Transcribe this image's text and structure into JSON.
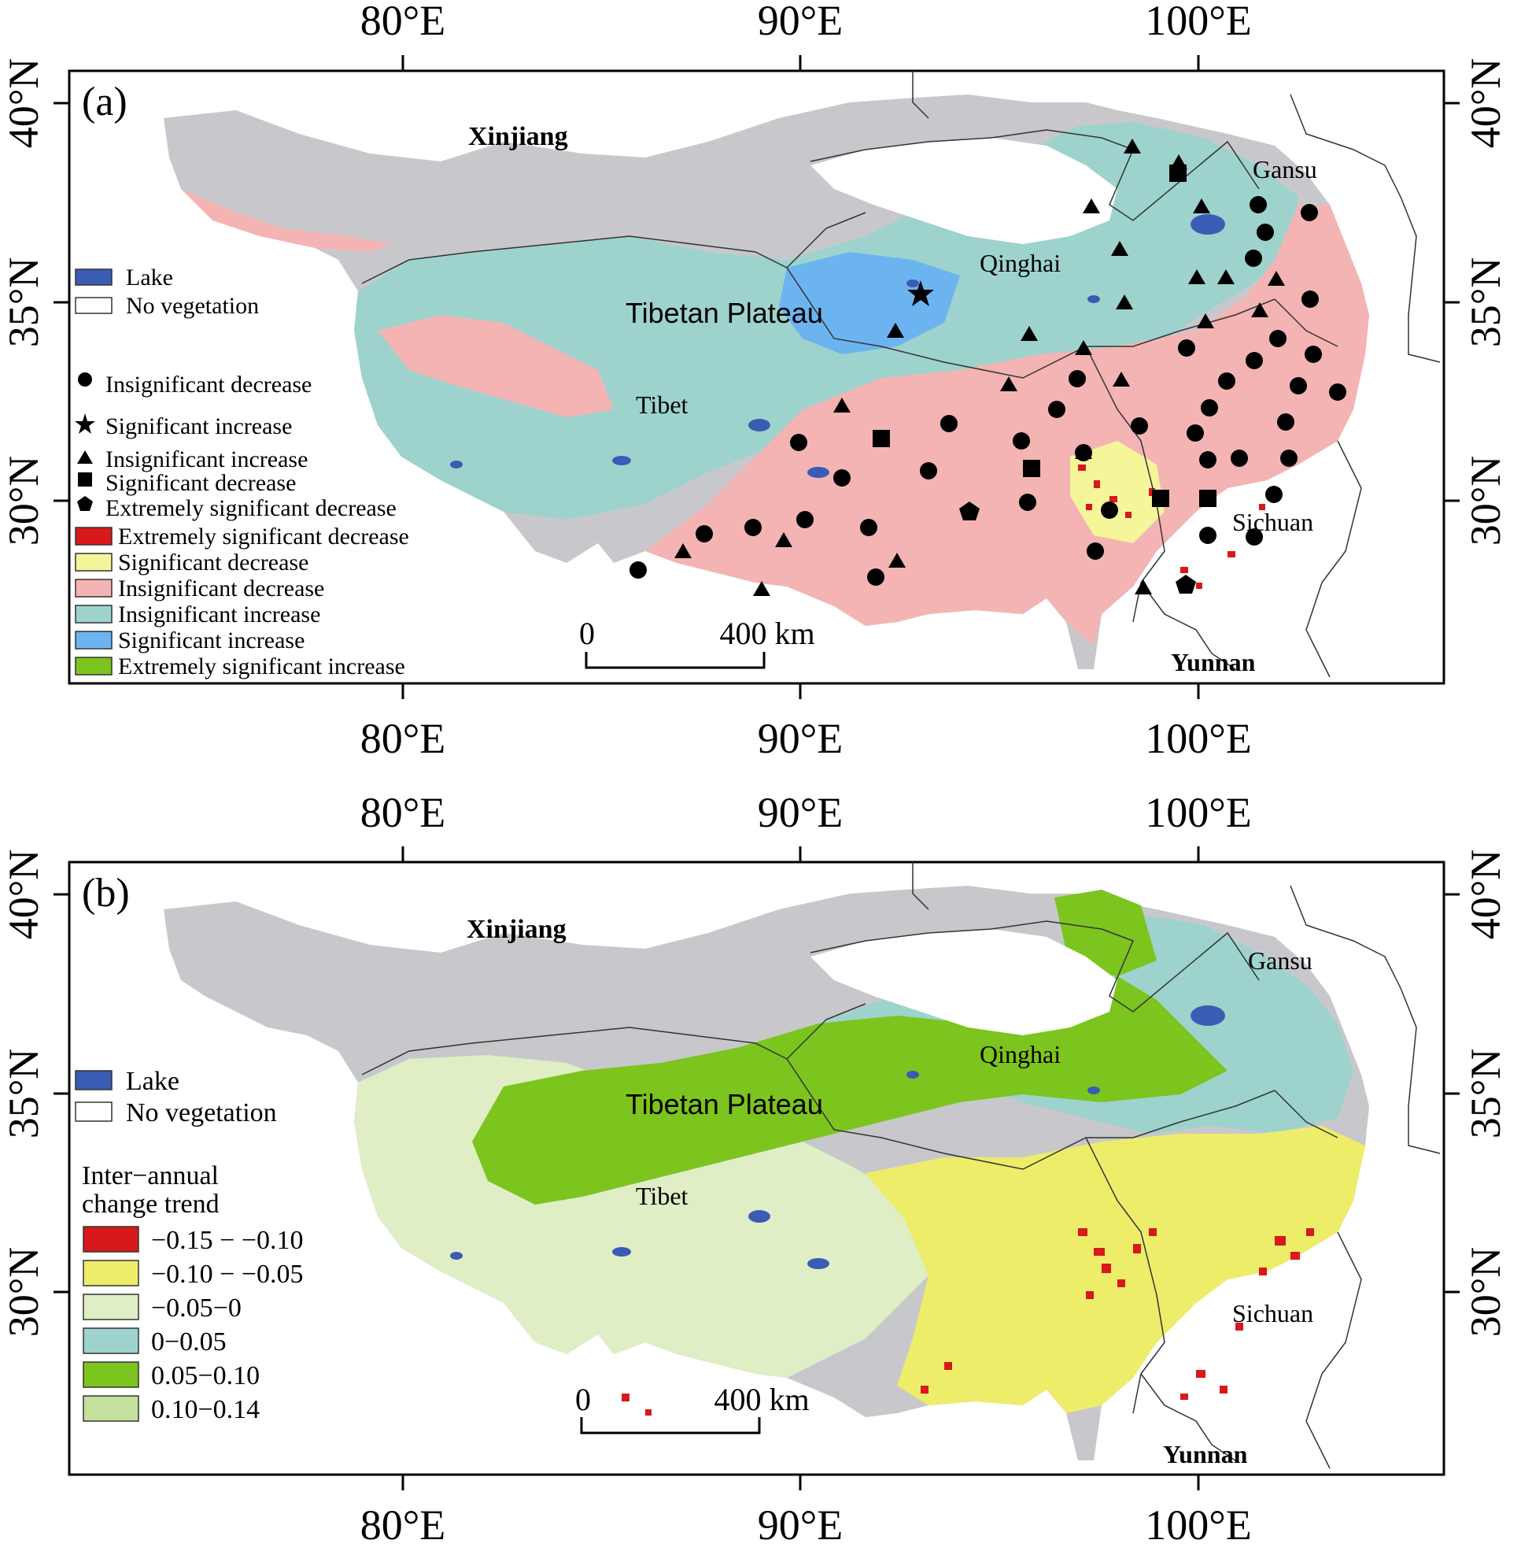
{
  "colors": {
    "lake": "#3a5cb4",
    "no_vegetation": "#ffffff",
    "outside_veg": "#c8c8cc",
    "border": "#000000"
  },
  "axes": {
    "lon_ticks": [
      "80°E",
      "90°E",
      "100°E"
    ],
    "lat_ticks": [
      "40°N",
      "35°N",
      "30°N"
    ]
  },
  "scale_bar": {
    "zero": "0",
    "end": "400 km"
  },
  "panels": [
    {
      "label": "(a)",
      "places": {
        "xinjiang": "Xinjiang",
        "gansu": "Gansu",
        "qinghai": "Qinghai",
        "plateau": "Tibetan Plateau",
        "tibet": "Tibet",
        "sichuan": "Sichuan",
        "yunnan": "Yunnan"
      },
      "legend_top": [
        {
          "label": "Lake",
          "color": "#3a5cb4"
        },
        {
          "label": "No vegetation",
          "color": "#ffffff"
        }
      ],
      "legend_markers": [
        {
          "label": "Insignificant decrease",
          "icon": "circle-icon"
        },
        {
          "label": "Significant increase",
          "icon": "star-icon"
        },
        {
          "label": "Insignificant increase",
          "icon": "triangle-icon"
        },
        {
          "label": "Significant decrease",
          "icon": "square-icon"
        },
        {
          "label": "Extremely significant decrease",
          "icon": "pentagon-icon"
        }
      ],
      "legend_classes": [
        {
          "label": "Extremely significant decrease",
          "color": "#d7191c"
        },
        {
          "label": "Significant decrease",
          "color": "#f5f59a"
        },
        {
          "label": "Insignificant decrease",
          "color": "#f4b4b4"
        },
        {
          "label": "Insignificant increase",
          "color": "#9dd3cc"
        },
        {
          "label": "Significant increase",
          "color": "#6cb4f0"
        },
        {
          "label": "Extremely significant increase",
          "color": "#7cc41e"
        }
      ]
    },
    {
      "label": "(b)",
      "places": {
        "xinjiang": "Xinjiang",
        "gansu": "Gansu",
        "qinghai": "Qinghai",
        "plateau": "Tibetan Plateau",
        "tibet": "Tibet",
        "sichuan": "Sichuan",
        "yunnan": "Yunnan"
      },
      "legend_top": [
        {
          "label": "Lake",
          "color": "#3a5cb4"
        },
        {
          "label": "No vegetation",
          "color": "#ffffff"
        }
      ],
      "legend_title": [
        "Inter−annual",
        "change trend"
      ],
      "legend_classes": [
        {
          "label": "−0.15 − −0.10",
          "color": "#d7191c"
        },
        {
          "label": "−0.10 − −0.05",
          "color": "#eded6a"
        },
        {
          "label": "−0.05−0",
          "color": "#dfeec4"
        },
        {
          "label": "0−0.05",
          "color": "#9dd3cc"
        },
        {
          "label": "0.05−0.10",
          "color": "#7cc41e"
        },
        {
          "label": "0.10−0.14",
          "color": "#c4e09c"
        }
      ]
    }
  ]
}
